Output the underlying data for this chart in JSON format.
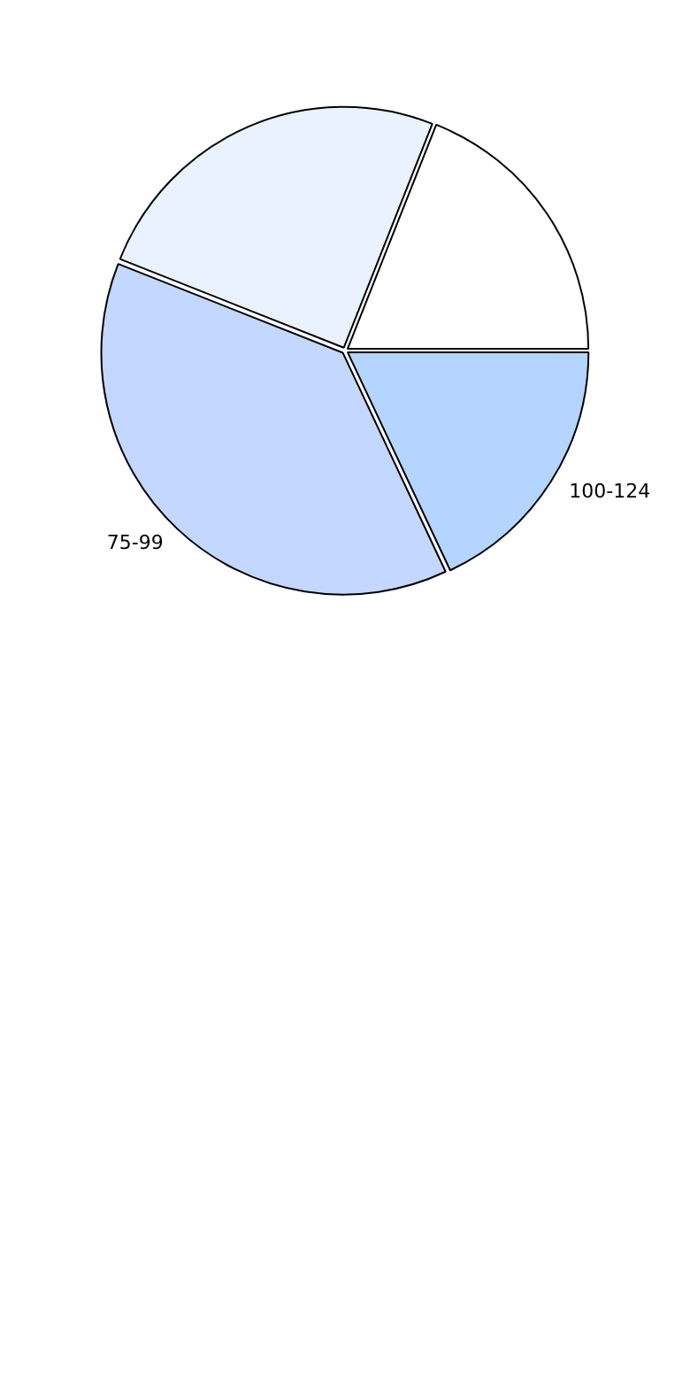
{
  "chart_data": {
    "type": "pie",
    "categories": [
      null,
      "100-124",
      "75-99",
      null
    ],
    "values": [
      19,
      18,
      38,
      25
    ],
    "colors": [
      "#ffffff",
      "#b3d5ff",
      "#c3d7ff",
      "#eaf1ff"
    ]
  }
}
